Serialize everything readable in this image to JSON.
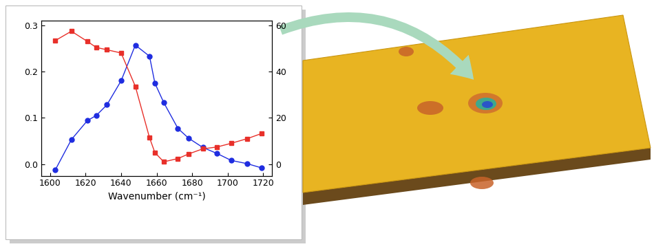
{
  "chart_data": {
    "type": "line",
    "x_label": "Wavenumber (cm⁻¹)",
    "xlim": [
      1595,
      1725
    ],
    "xticks": [
      1600,
      1620,
      1640,
      1660,
      1680,
      1700,
      1720
    ],
    "ylim": [
      -0.025,
      0.31
    ],
    "yticks": [
      {
        "value": 0.0,
        "label": "0.0"
      },
      {
        "value": 0.1,
        "label": "0.1"
      },
      {
        "value": 0.2,
        "label": "0.2"
      },
      {
        "value": 0.3,
        "label": "0.3"
      }
    ],
    "y2lim": [
      -5,
      62
    ],
    "y2ticks": [
      0,
      20,
      40,
      60
    ],
    "grid": false,
    "series": [
      {
        "color": "#1f2de0",
        "marker": "circle",
        "line_style": "solid",
        "x": [
          1603,
          1612,
          1621,
          1626,
          1632,
          1640,
          1648,
          1656,
          1659,
          1664,
          1672,
          1678,
          1686,
          1694,
          1702,
          1711,
          1719
        ],
        "values": [
          -0.012,
          0.053,
          0.094,
          0.105,
          0.128,
          0.18,
          0.257,
          0.233,
          0.175,
          0.133,
          0.077,
          0.056,
          0.036,
          0.023,
          0.008,
          0.001,
          -0.008
        ]
      },
      {
        "color": "#e8302a",
        "marker": "square",
        "line_style": "solid",
        "axis": "y2",
        "x": [
          1603,
          1612,
          1621,
          1626,
          1632,
          1640,
          1648,
          1656,
          1659,
          1664,
          1672,
          1678,
          1686,
          1694,
          1702,
          1711,
          1719
        ],
        "values": [
          53.4,
          57.4,
          53,
          50.4,
          49.4,
          48,
          33.6,
          11.4,
          5,
          1,
          2.4,
          4.4,
          6.6,
          7.4,
          9,
          11,
          13.2
        ]
      }
    ]
  }
}
